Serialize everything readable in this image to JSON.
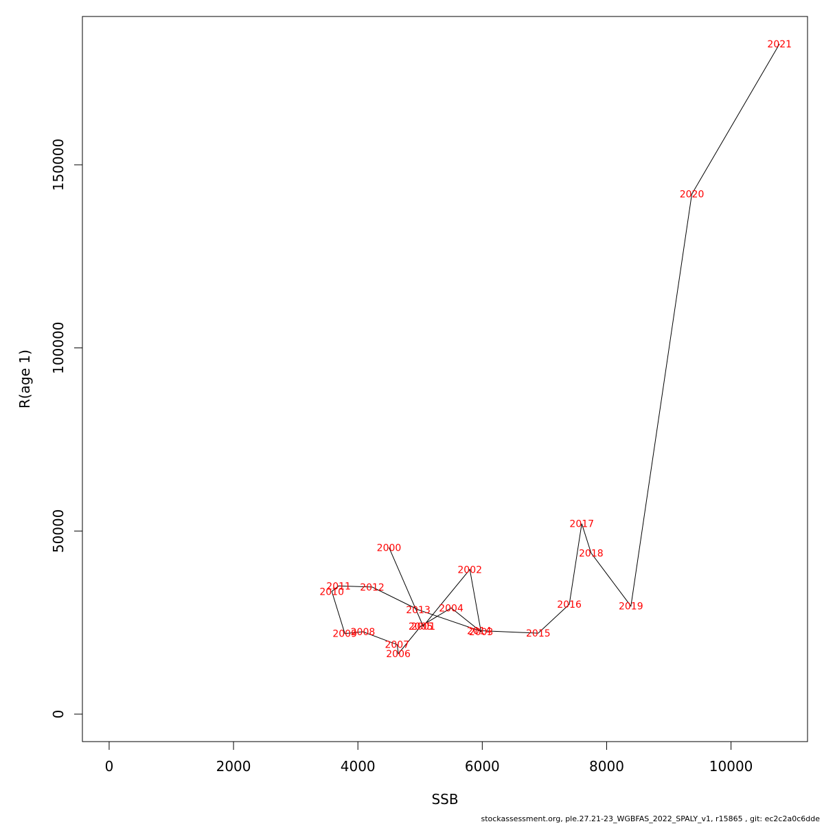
{
  "chart_data": {
    "type": "line",
    "xlabel": "SSB",
    "ylabel": "R(age 1)",
    "xlim": [
      -430,
      11230
    ],
    "ylim": [
      -7500,
      190500
    ],
    "x_ticks": [
      0,
      2000,
      4000,
      6000,
      8000,
      10000
    ],
    "y_ticks": [
      0,
      50000,
      100000,
      150000
    ],
    "grid": false,
    "colors": {
      "line": "#000000",
      "labels": "#ff0000"
    },
    "points": [
      {
        "label": "2000",
        "x": 4500,
        "y": 45500
      },
      {
        "label": "2001",
        "x": 5050,
        "y": 24000
      },
      {
        "label": "2002",
        "x": 5800,
        "y": 39500
      },
      {
        "label": "2003",
        "x": 5980,
        "y": 22500
      },
      {
        "label": "2004",
        "x": 5500,
        "y": 29000
      },
      {
        "label": "2005",
        "x": 5010,
        "y": 24000
      },
      {
        "label": "2006",
        "x": 4650,
        "y": 16500
      },
      {
        "label": "2007",
        "x": 4630,
        "y": 19000
      },
      {
        "label": "2008",
        "x": 4080,
        "y": 22500
      },
      {
        "label": "2009",
        "x": 3790,
        "y": 22000
      },
      {
        "label": "2010",
        "x": 3580,
        "y": 33500
      },
      {
        "label": "2011",
        "x": 3690,
        "y": 35000
      },
      {
        "label": "2012",
        "x": 4230,
        "y": 34700
      },
      {
        "label": "2013",
        "x": 4970,
        "y": 28500
      },
      {
        "label": "2014",
        "x": 5950,
        "y": 22800
      },
      {
        "label": "2015",
        "x": 6900,
        "y": 22100
      },
      {
        "label": "2016",
        "x": 7400,
        "y": 30000
      },
      {
        "label": "2017",
        "x": 7600,
        "y": 52000
      },
      {
        "label": "2018",
        "x": 7750,
        "y": 44000
      },
      {
        "label": "2019",
        "x": 8390,
        "y": 29500
      },
      {
        "label": "2020",
        "x": 9370,
        "y": 142000
      },
      {
        "label": "2021",
        "x": 10780,
        "y": 183000
      }
    ]
  },
  "footer": {
    "text": "stockassessment.org, ple.27.21-23_WGBFAS_2022_SPALY_v1, r15865 , git: ec2c2a0c6dde"
  }
}
